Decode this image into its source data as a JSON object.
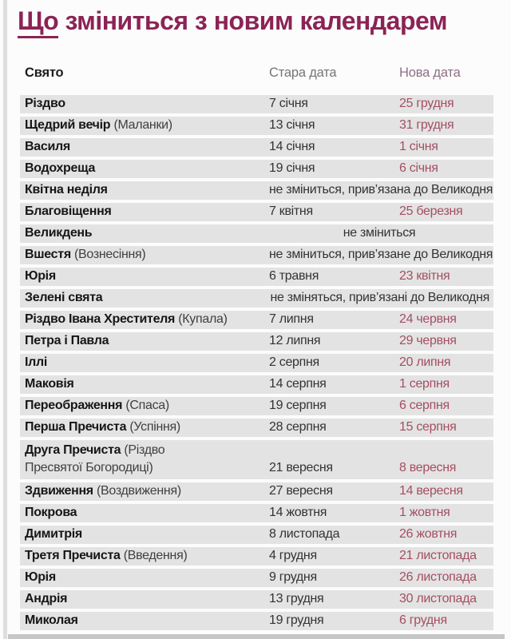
{
  "title": {
    "lead": "Що",
    "rest": " зміниться з новим календарем"
  },
  "colors": {
    "title": "#8b2355",
    "old_header": "#757575",
    "new_header": "#8d7085",
    "row_bg": "#e3e3e3",
    "holiday_text": "#161616",
    "date_text": "#333333",
    "new_date": "#a44f63"
  },
  "table": {
    "headers": {
      "holiday": "Свято",
      "old_date": "Стара дата",
      "new_date": "Нова дата"
    },
    "rows": [
      {
        "holiday": "Різдво",
        "old": "7 січня",
        "new": "25 грудня"
      },
      {
        "holiday": "Щедрий вечір",
        "note": "(Маланки)",
        "old": "13 січня",
        "new": "31 грудня"
      },
      {
        "holiday": "Василя",
        "old": "14 січня",
        "new": "1 січня"
      },
      {
        "holiday": "Водохреща",
        "old": "19 січня",
        "new": "6 січня"
      },
      {
        "holiday": "Квітна неділя",
        "span": "не зміниться, прив’язана до Великодня",
        "span_align": "right"
      },
      {
        "holiday": "Благовіщення",
        "old": "7 квітня",
        "new": "25 березня"
      },
      {
        "holiday": "Великдень",
        "span": "не зміниться",
        "span_align": "center"
      },
      {
        "holiday": "Вшестя",
        "note": "(Вознесіння)",
        "span": "не зміниться, прив’язане до Великодня",
        "span_align": "right"
      },
      {
        "holiday": "Юрія",
        "old": "6 травня",
        "new": "23 квітня"
      },
      {
        "holiday": "Зелені свята",
        "span": "не зміняться, прив’язані до Великодня",
        "span_align": "right"
      },
      {
        "holiday": "Різдво Івана Хрестителя",
        "note": "(Купала)",
        "old": "7 липня",
        "new": "24 червня"
      },
      {
        "holiday": "Петра і Павла",
        "old": "12 липня",
        "new": "29 червня"
      },
      {
        "holiday": "Іллі",
        "old": "2 серпня",
        "new": "20 липня"
      },
      {
        "holiday": "Маковія",
        "old": "14 серпня",
        "new": "1 серпня"
      },
      {
        "holiday": "Переображення",
        "note": "(Спаса)",
        "old": "19 серпня",
        "new": "6 серпня"
      },
      {
        "holiday": "Перша Пречиста",
        "note": "(Успіння)",
        "old": "28 серпня",
        "new": "15 серпня"
      },
      {
        "holiday": "Друга Пречиста",
        "note": "(Різдво Пресвятої Богородиці)",
        "old": "21 вересня",
        "new": "8 вересня",
        "two_line": true
      },
      {
        "holiday": "Здвиження",
        "note": "(Воздвиження)",
        "old": "27 вересня",
        "new": "14 вересня"
      },
      {
        "holiday": "Покрова",
        "old": "14 жовтня",
        "new": "1 жовтня"
      },
      {
        "holiday": "Димитрія",
        "old": "8 листопада",
        "new": "26 жовтня"
      },
      {
        "holiday": "Третя Пречиста",
        "note": "(Введення)",
        "old": "4 грудня",
        "new": "21 листопада"
      },
      {
        "holiday": "Юрія",
        "old": "9 грудня",
        "new": "26 листопада"
      },
      {
        "holiday": "Андрія",
        "old": "13 грудня",
        "new": "30 листопада"
      },
      {
        "holiday": "Миколая",
        "old": "19 грудня",
        "new": "6 грудня"
      }
    ]
  }
}
